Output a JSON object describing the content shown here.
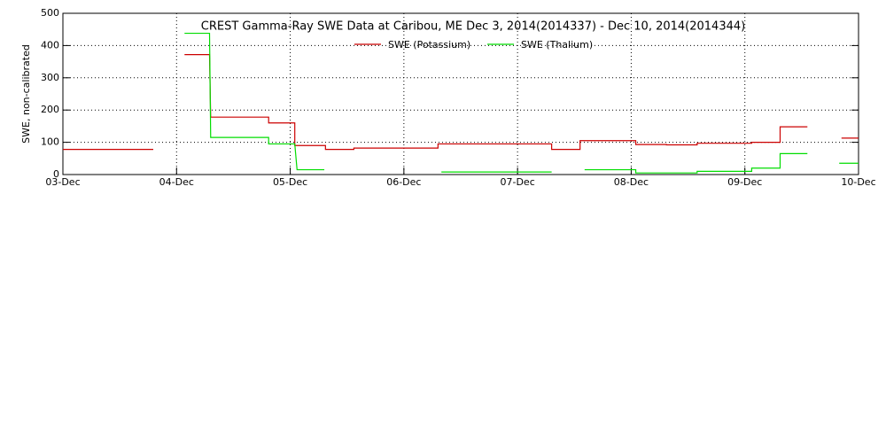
{
  "chart_data": {
    "type": "line",
    "title": "CREST Gamma-Ray SWE Data at Caribou, ME   Dec  3, 2014(2014337) - Dec 10, 2014(2014344)",
    "ylabel": "SWE, non-calibrated",
    "xlim": [
      0,
      7
    ],
    "ylim": [
      0,
      500
    ],
    "xticks": [
      {
        "value": 0,
        "label": "03-Dec"
      },
      {
        "value": 1,
        "label": "04-Dec"
      },
      {
        "value": 2,
        "label": "05-Dec"
      },
      {
        "value": 3,
        "label": "06-Dec"
      },
      {
        "value": 4,
        "label": "07-Dec"
      },
      {
        "value": 5,
        "label": "08-Dec"
      },
      {
        "value": 6,
        "label": "09-Dec"
      },
      {
        "value": 7,
        "label": "10-Dec"
      }
    ],
    "yticks": [
      0,
      100,
      200,
      300,
      400,
      500
    ],
    "grid": true,
    "legend": "top",
    "series": [
      {
        "name": "SWE (Potassium)",
        "color": "#cc0000",
        "x": [
          0,
          0.795,
          0.9,
          1.07,
          1.29,
          1.3,
          1.81,
          1.81,
          2.04,
          2.04,
          2.31,
          2.31,
          2.56,
          2.56,
          3.3,
          3.3,
          4.3,
          4.3,
          4.55,
          4.55,
          5.04,
          5.04,
          5.31,
          5.31,
          5.58,
          5.58,
          6.06,
          6.06,
          6.31,
          6.31,
          6.55,
          6.7,
          6.85,
          7
        ],
        "values": [
          78,
          78,
          null,
          372,
          372,
          178,
          178,
          160,
          160,
          90,
          90,
          78,
          78,
          82,
          82,
          95,
          95,
          78,
          78,
          105,
          105,
          93,
          93,
          92,
          92,
          97,
          97,
          100,
          100,
          148,
          148,
          null,
          113,
          113
        ]
      },
      {
        "name": "SWE (Thalium)",
        "color": "#00dd00",
        "x": [
          1.07,
          1.29,
          1.3,
          1.81,
          1.81,
          2.04,
          2.06,
          2.3,
          2.8,
          3.33,
          4.3,
          4.45,
          4.59,
          5.04,
          5.04,
          5.58,
          5.58,
          6.06,
          6.06,
          6.31,
          6.31,
          6.55,
          6.7,
          6.83,
          7
        ],
        "values": [
          438,
          438,
          115,
          115,
          95,
          95,
          15,
          15,
          null,
          8,
          8,
          null,
          15,
          15,
          5,
          5,
          10,
          10,
          20,
          20,
          65,
          65,
          null,
          35,
          35
        ]
      }
    ]
  }
}
